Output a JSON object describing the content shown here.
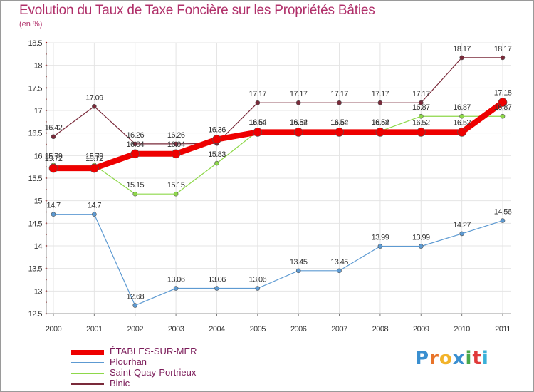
{
  "title": "Evolution du Taux de Taxe Foncière sur les Propriétés Bâties",
  "subtitle": "(en %)",
  "logo": {
    "letters": [
      "P",
      "r",
      "o",
      "x",
      "i",
      "t",
      "i"
    ],
    "colors": [
      "#3a8fd0",
      "#e8742a",
      "#f2b32a",
      "#3a8fd0",
      "#4aa84a",
      "#e03a3a",
      "#3ab0d8"
    ]
  },
  "chart_data": {
    "type": "line",
    "title": "Evolution du Taux de Taxe Foncière sur les Propriétés Bâties",
    "ylabel": "(en %)",
    "xlabel": "",
    "ylim": [
      12.5,
      18.5
    ],
    "yticks": [
      "12.5",
      "13",
      "13.5",
      "14",
      "14.5",
      "15",
      "15.5",
      "16",
      "16.5",
      "17",
      "17.5",
      "18",
      "18.5"
    ],
    "x": [
      "2000",
      "2001",
      "2002",
      "2003",
      "2004",
      "2005",
      "2006",
      "2007",
      "2008",
      "2009",
      "2010",
      "2011"
    ],
    "series": [
      {
        "name": "ÉTABLES-SUR-MER",
        "color": "#ee0000",
        "values": [
          15.72,
          15.72,
          16.04,
          16.04,
          16.36,
          16.52,
          16.52,
          16.52,
          16.52,
          16.52,
          16.52,
          17.18
        ],
        "labels": [
          "15.72",
          "15.72",
          "16.04",
          "16.04",
          "16.36",
          "16.52",
          "16.52",
          "16.52",
          "16.52",
          "16.52",
          "16.52",
          "17.18"
        ]
      },
      {
        "name": "Plourhan",
        "color": "#5d9ad2",
        "values": [
          14.7,
          14.7,
          12.68,
          13.06,
          13.06,
          13.06,
          13.45,
          13.45,
          13.99,
          13.99,
          14.27,
          14.56
        ],
        "labels": [
          "14.7",
          "14.7",
          "12.68",
          "13.06",
          "13.06",
          "13.06",
          "13.45",
          "13.45",
          "13.99",
          "13.99",
          "14.27",
          "14.56"
        ]
      },
      {
        "name": "Saint-Quay-Portrieux",
        "color": "#8ed84a",
        "values": [
          15.79,
          15.79,
          15.15,
          15.15,
          15.83,
          16.54,
          16.54,
          16.54,
          16.54,
          16.87,
          16.87,
          16.87
        ],
        "labels": [
          "15.79",
          "15.79",
          "15.15",
          "15.15",
          "15.83",
          "16.54",
          "16.54",
          "16.54",
          "16.54",
          "16.87",
          "16.87",
          "16.87"
        ]
      },
      {
        "name": "Binic",
        "color": "#7a2a3a",
        "values": [
          16.42,
          17.09,
          16.26,
          16.26,
          16.27,
          17.17,
          17.17,
          17.17,
          17.17,
          17.17,
          18.17,
          18.17
        ],
        "labels": [
          "16.42",
          "17.09",
          "16.26",
          "16.26",
          "",
          "17.17",
          "17.17",
          "17.17",
          "17.17",
          "17.17",
          "18.17",
          "18.17"
        ]
      }
    ],
    "legend_position": "bottom-left",
    "grid": true
  }
}
